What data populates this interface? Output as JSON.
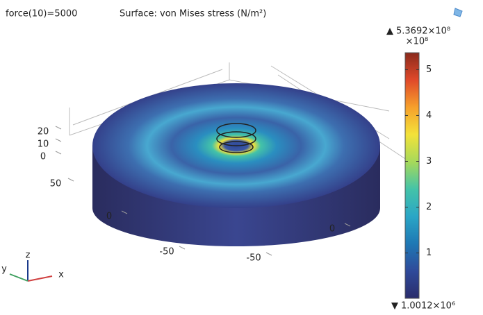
{
  "chart_data": {
    "type": "surface3d",
    "title": "force(10)=5000",
    "subtitle": "Surface: von Mises stress (N/m²)",
    "xticks": [
      -50,
      0
    ],
    "yticks": [
      -50,
      0,
      50
    ],
    "zticks": [
      0,
      10,
      20
    ],
    "axis_names": [
      "x",
      "y",
      "z"
    ],
    "colorbar": {
      "unit": "×10⁸",
      "clim": [
        0.010012,
        5.3692
      ],
      "ticks": [
        1,
        2,
        3,
        4,
        5
      ],
      "max": {
        "value": 5.3692,
        "label": "5.3692×10⁸"
      },
      "min": {
        "value": 0.010012,
        "label": "1.0012×10⁶"
      },
      "colormap": [
        "#2a2c6b",
        "#2f4a9a",
        "#1f78b4",
        "#2aa6c6",
        "#44c3a8",
        "#a6d95a",
        "#f3e23a",
        "#f6a02b",
        "#e0492a",
        "#8a2a1c"
      ]
    }
  }
}
